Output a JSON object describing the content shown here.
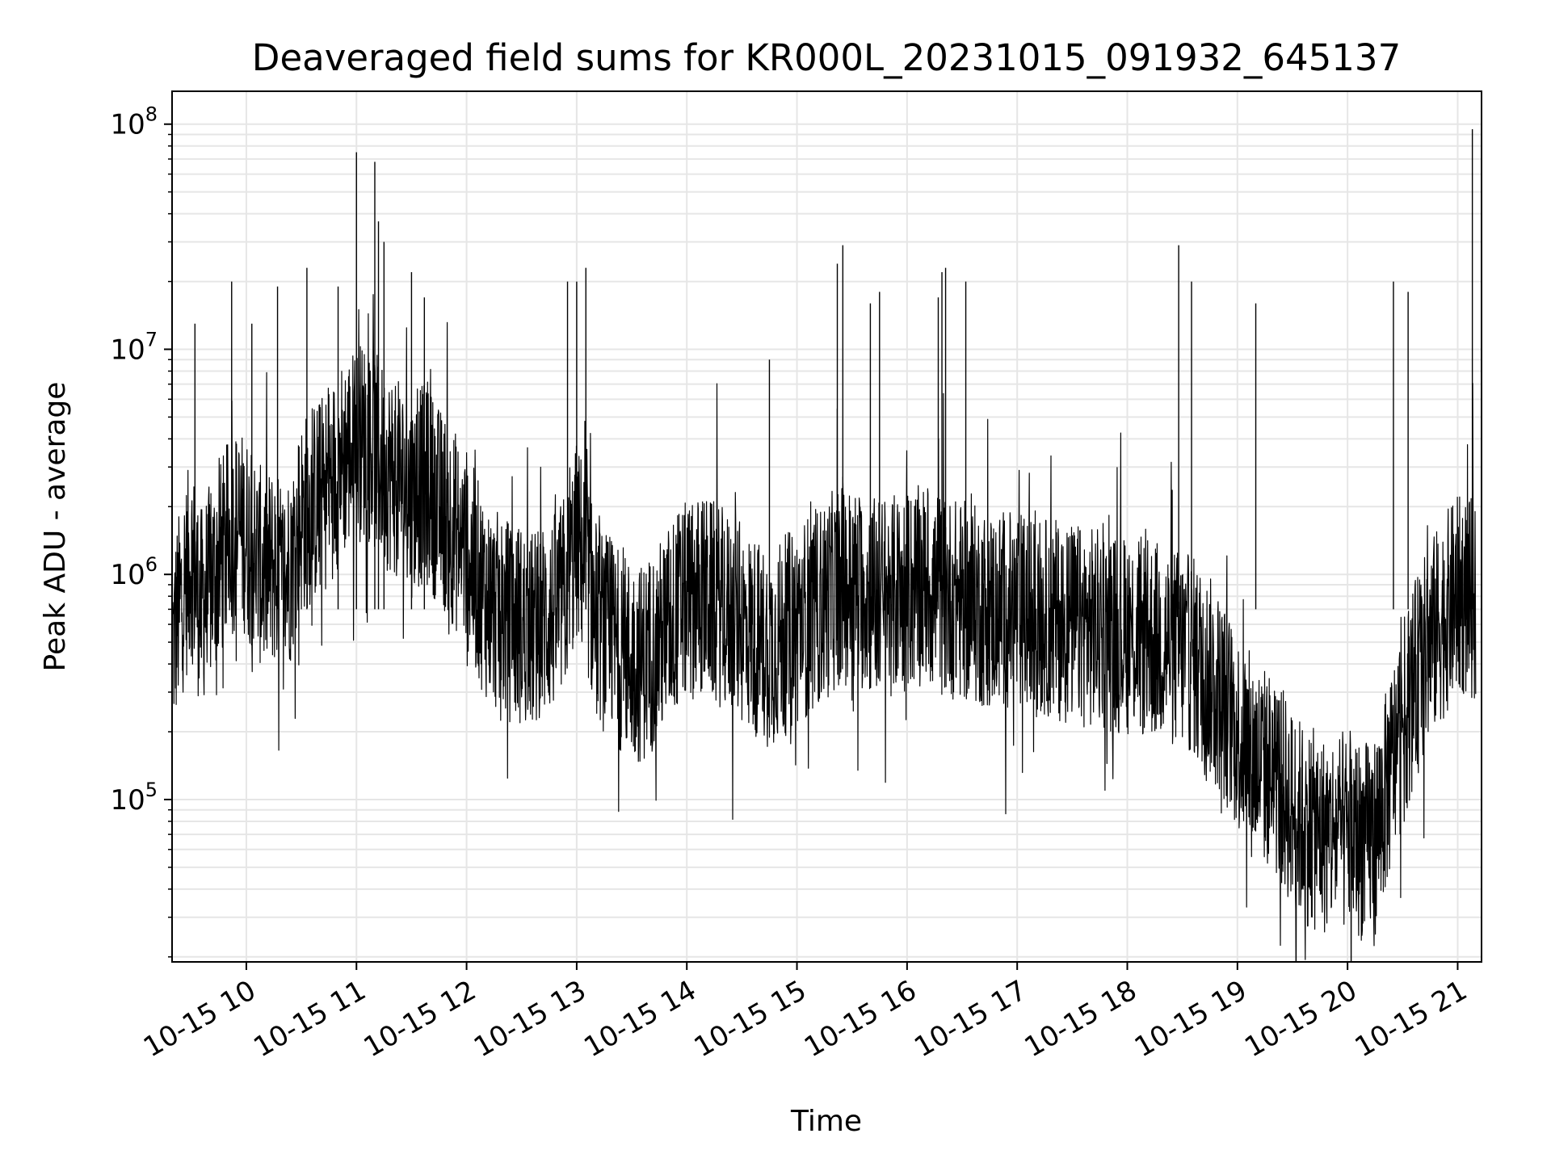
{
  "chart_data": {
    "type": "line",
    "title": "Deaveraged field sums for KR000L_20231015_091932_645137",
    "xlabel": "Time",
    "ylabel": "Peak ADU - average",
    "y_scale": "log",
    "ylim": [
      19000,
      140000000
    ],
    "xlim": [
      "2023-10-15T09:19:32",
      "2023-10-15T21:13:00"
    ],
    "x_ticks": [
      "2023-10-15T10:00",
      "2023-10-15T11:00",
      "2023-10-15T12:00",
      "2023-10-15T13:00",
      "2023-10-15T14:00",
      "2023-10-15T15:00",
      "2023-10-15T16:00",
      "2023-10-15T17:00",
      "2023-10-15T18:00",
      "2023-10-15T19:00",
      "2023-10-15T20:00",
      "2023-10-15T21:00"
    ],
    "x_tick_labels": [
      "10-15 10",
      "10-15 11",
      "10-15 12",
      "10-15 13",
      "10-15 14",
      "10-15 15",
      "10-15 16",
      "10-15 17",
      "10-15 18",
      "10-15 19",
      "10-15 20",
      "10-15 21"
    ],
    "y_tick_labels": [
      {
        "base": "10",
        "exp": "5",
        "value": 100000
      },
      {
        "base": "10",
        "exp": "6",
        "value": 1000000
      },
      {
        "base": "10",
        "exp": "7",
        "value": 10000000
      },
      {
        "base": "10",
        "exp": "8",
        "value": 100000000
      }
    ],
    "grid": true,
    "grid_minor": true,
    "line_color": "#000000",
    "series": [
      {
        "x": [
          "2023-10-15T09:20",
          "2023-10-15T09:25",
          "2023-10-15T09:30",
          "2023-10-15T09:35",
          "2023-10-15T09:40",
          "2023-10-15T09:45",
          "2023-10-15T09:50",
          "2023-10-15T09:55",
          "2023-10-15T10:00",
          "2023-10-15T10:05",
          "2023-10-15T10:10",
          "2023-10-15T10:15",
          "2023-10-15T10:20",
          "2023-10-15T10:25",
          "2023-10-15T10:30",
          "2023-10-15T10:35",
          "2023-10-15T10:40",
          "2023-10-15T10:45",
          "2023-10-15T10:50",
          "2023-10-15T10:55",
          "2023-10-15T11:00",
          "2023-10-15T11:05",
          "2023-10-15T11:10",
          "2023-10-15T11:15",
          "2023-10-15T11:20",
          "2023-10-15T11:25",
          "2023-10-15T11:30",
          "2023-10-15T11:35",
          "2023-10-15T11:40",
          "2023-10-15T11:45",
          "2023-10-15T11:50",
          "2023-10-15T11:55",
          "2023-10-15T12:00",
          "2023-10-15T12:05",
          "2023-10-15T12:10",
          "2023-10-15T12:15",
          "2023-10-15T12:20",
          "2023-10-15T12:25",
          "2023-10-15T12:30",
          "2023-10-15T12:35",
          "2023-10-15T12:40",
          "2023-10-15T12:45",
          "2023-10-15T12:50",
          "2023-10-15T12:55",
          "2023-10-15T13:00",
          "2023-10-15T13:05",
          "2023-10-15T13:10",
          "2023-10-15T13:15",
          "2023-10-15T13:20",
          "2023-10-15T13:25",
          "2023-10-15T13:30",
          "2023-10-15T13:35",
          "2023-10-15T13:40",
          "2023-10-15T13:45",
          "2023-10-15T13:50",
          "2023-10-15T13:55",
          "2023-10-15T14:00",
          "2023-10-15T14:05",
          "2023-10-15T14:10",
          "2023-10-15T14:15",
          "2023-10-15T14:20",
          "2023-10-15T14:25",
          "2023-10-15T14:30",
          "2023-10-15T14:35",
          "2023-10-15T14:40",
          "2023-10-15T14:45",
          "2023-10-15T14:50",
          "2023-10-15T14:55",
          "2023-10-15T15:00",
          "2023-10-15T15:05",
          "2023-10-15T15:10",
          "2023-10-15T15:15",
          "2023-10-15T15:20",
          "2023-10-15T15:25",
          "2023-10-15T15:30",
          "2023-10-15T15:35",
          "2023-10-15T15:40",
          "2023-10-15T15:45",
          "2023-10-15T15:50",
          "2023-10-15T15:55",
          "2023-10-15T16:00",
          "2023-10-15T16:05",
          "2023-10-15T16:10",
          "2023-10-15T16:15",
          "2023-10-15T16:20",
          "2023-10-15T16:25",
          "2023-10-15T16:30",
          "2023-10-15T16:35",
          "2023-10-15T16:40",
          "2023-10-15T16:45",
          "2023-10-15T16:50",
          "2023-10-15T16:55",
          "2023-10-15T17:00",
          "2023-10-15T17:05",
          "2023-10-15T17:10",
          "2023-10-15T17:15",
          "2023-10-15T17:20",
          "2023-10-15T17:25",
          "2023-10-15T17:30",
          "2023-10-15T17:35",
          "2023-10-15T17:40",
          "2023-10-15T17:45",
          "2023-10-15T17:50",
          "2023-10-15T17:55",
          "2023-10-15T18:00",
          "2023-10-15T18:05",
          "2023-10-15T18:10",
          "2023-10-15T18:15",
          "2023-10-15T18:20",
          "2023-10-15T18:25",
          "2023-10-15T18:30",
          "2023-10-15T18:35",
          "2023-10-15T18:40",
          "2023-10-15T18:45",
          "2023-10-15T18:50",
          "2023-10-15T18:55",
          "2023-10-15T19:00",
          "2023-10-15T19:05",
          "2023-10-15T19:10",
          "2023-10-15T19:15",
          "2023-10-15T19:20",
          "2023-10-15T19:25",
          "2023-10-15T19:30",
          "2023-10-15T19:35",
          "2023-10-15T19:40",
          "2023-10-15T19:45",
          "2023-10-15T19:50",
          "2023-10-15T19:55",
          "2023-10-15T20:00",
          "2023-10-15T20:05",
          "2023-10-15T20:10",
          "2023-10-15T20:15",
          "2023-10-15T20:20",
          "2023-10-15T20:25",
          "2023-10-15T20:30",
          "2023-10-15T20:35",
          "2023-10-15T20:40",
          "2023-10-15T20:45",
          "2023-10-15T20:50",
          "2023-10-15T20:55",
          "2023-10-15T21:00",
          "2023-10-15T21:05",
          "2023-10-15T21:10"
        ],
        "y": [
          500000,
          800000,
          1200000,
          700000,
          900000,
          1100000,
          1400000,
          1600000,
          1500000,
          1200000,
          1000000,
          1100000,
          900000,
          1200000,
          1800000,
          2000000,
          2200000,
          2500000,
          3000000,
          3500000,
          3800000,
          4000000,
          3500000,
          3000000,
          2800000,
          2500000,
          2200000,
          2500000,
          2400000,
          2000000,
          1800000,
          1500000,
          1300000,
          1000000,
          800000,
          700000,
          650000,
          600000,
          600000,
          550000,
          600000,
          650000,
          700000,
          900000,
          1400000,
          1100000,
          650000,
          550000,
          500000,
          450000,
          420000,
          400000,
          450000,
          500000,
          600000,
          700000,
          750000,
          800000,
          800000,
          750000,
          700000,
          650000,
          600000,
          550000,
          500000,
          480000,
          500000,
          550000,
          600000,
          650000,
          700000,
          750000,
          850000,
          900000,
          880000,
          850000,
          820000,
          800000,
          800000,
          820000,
          850000,
          880000,
          900000,
          850000,
          800000,
          780000,
          760000,
          740000,
          720000,
          700000,
          700000,
          690000,
          680000,
          670000,
          650000,
          640000,
          630000,
          620000,
          600000,
          590000,
          580000,
          570000,
          560000,
          550000,
          540000,
          530000,
          520000,
          510000,
          500000,
          480000,
          460000,
          440000,
          400000,
          350000,
          300000,
          250000,
          200000,
          170000,
          150000,
          140000,
          130000,
          110000,
          90000,
          80000,
          75000,
          70000,
          70000,
          72000,
          70000,
          68000,
          65000,
          70000,
          100000,
          150000,
          220000,
          300000,
          400000,
          500000,
          600000,
          700000,
          800000,
          800000,
          750000
        ]
      }
    ],
    "spikes": [
      {
        "x": "2023-10-15T09:32",
        "y": 13000000
      },
      {
        "x": "2023-10-15T09:52",
        "y": 20000000
      },
      {
        "x": "2023-10-15T10:03",
        "y": 13000000
      },
      {
        "x": "2023-10-15T10:17",
        "y": 19000000
      },
      {
        "x": "2023-10-15T10:33",
        "y": 23000000
      },
      {
        "x": "2023-10-15T10:50",
        "y": 19000000
      },
      {
        "x": "2023-10-15T11:00",
        "y": 75000000
      },
      {
        "x": "2023-10-15T11:10",
        "y": 68000000
      },
      {
        "x": "2023-10-15T11:12",
        "y": 37000000
      },
      {
        "x": "2023-10-15T11:15",
        "y": 30000000
      },
      {
        "x": "2023-10-15T11:30",
        "y": 22000000
      },
      {
        "x": "2023-10-15T11:37",
        "y": 17000000
      },
      {
        "x": "2023-10-15T12:55",
        "y": 20000000
      },
      {
        "x": "2023-10-15T13:00",
        "y": 20000000
      },
      {
        "x": "2023-10-15T13:05",
        "y": 23000000
      },
      {
        "x": "2023-10-15T14:45",
        "y": 9000000
      },
      {
        "x": "2023-10-15T15:22",
        "y": 24000000
      },
      {
        "x": "2023-10-15T15:25",
        "y": 29000000
      },
      {
        "x": "2023-10-15T15:40",
        "y": 16000000
      },
      {
        "x": "2023-10-15T15:45",
        "y": 18000000
      },
      {
        "x": "2023-10-15T16:17",
        "y": 17000000
      },
      {
        "x": "2023-10-15T16:19",
        "y": 22000000
      },
      {
        "x": "2023-10-15T16:21",
        "y": 23000000
      },
      {
        "x": "2023-10-15T16:32",
        "y": 20000000
      },
      {
        "x": "2023-10-15T18:28",
        "y": 29000000
      },
      {
        "x": "2023-10-15T18:35",
        "y": 20000000
      },
      {
        "x": "2023-10-15T19:10",
        "y": 16000000
      },
      {
        "x": "2023-10-15T20:25",
        "y": 20000000
      },
      {
        "x": "2023-10-15T20:33",
        "y": 18000000
      },
      {
        "x": "2023-10-15T21:08",
        "y": 95000000
      }
    ]
  }
}
